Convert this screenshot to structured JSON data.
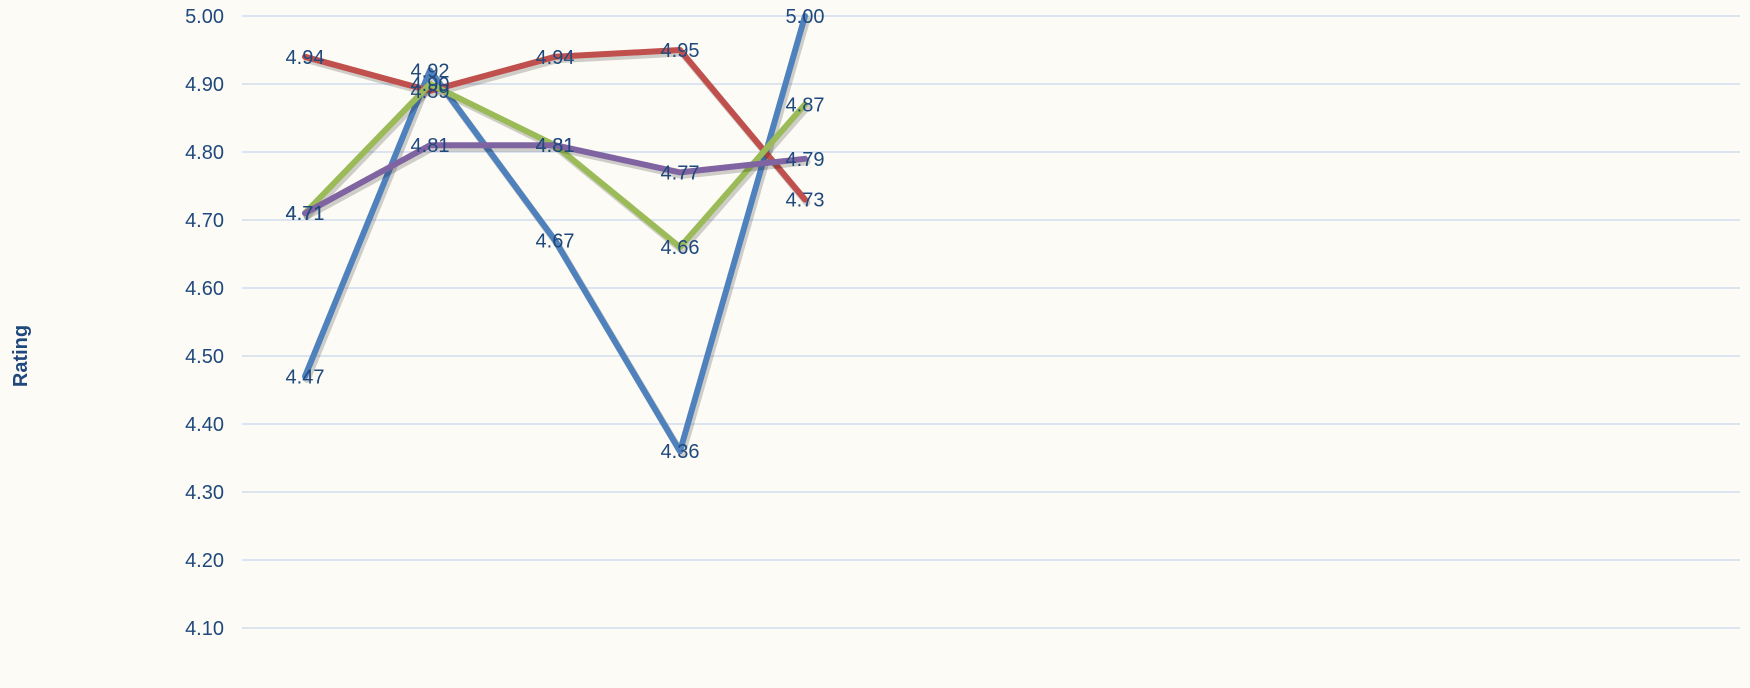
{
  "chart_data": {
    "type": "line",
    "ylabel": "Rating",
    "ylim": [
      4.1,
      5.0
    ],
    "yticks": [
      "4.10",
      "4.20",
      "4.30",
      "4.40",
      "4.50",
      "4.60",
      "4.70",
      "4.80",
      "4.90",
      "5.00"
    ],
    "grid": true,
    "text_color": "#1f497d",
    "grid_color": "#c9d7ec",
    "series": [
      {
        "color": "#4f81bd",
        "values": [
          4.47,
          4.92,
          4.67,
          4.36,
          5.0
        ],
        "labels": [
          "4.47",
          "4.92",
          "4.67",
          "4.36",
          "5.00"
        ]
      },
      {
        "color": "#c0504d",
        "values": [
          4.94,
          4.89,
          4.94,
          4.95,
          4.73
        ],
        "labels": [
          "4.94",
          "4.89",
          "4.94",
          "4.95",
          "4.73"
        ]
      },
      {
        "color": "#9bbb59",
        "values": [
          4.71,
          4.9,
          4.81,
          4.66,
          4.87
        ],
        "labels": [
          "4.71",
          "4.90",
          "4.81",
          "4.66",
          "4.87"
        ]
      },
      {
        "color": "#8064a2",
        "values": [
          4.71,
          4.81,
          4.81,
          4.77,
          4.79
        ],
        "labels": [
          "4.71",
          "4.81",
          "4.81",
          "4.77",
          "4.79"
        ]
      }
    ]
  }
}
